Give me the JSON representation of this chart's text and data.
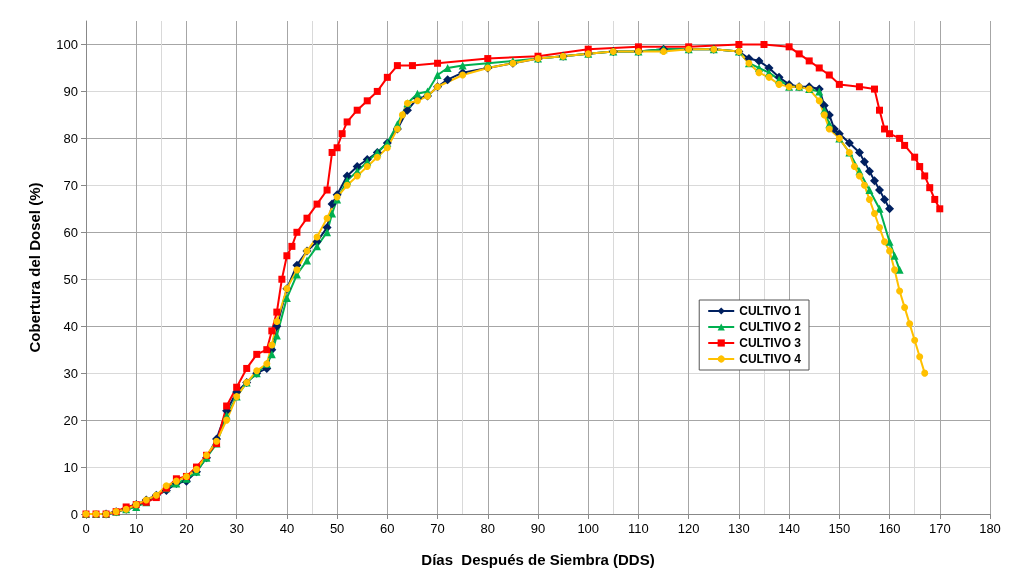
{
  "chart_data": {
    "type": "line",
    "xlabel": "Días  Después de Siembra (DDS)",
    "ylabel": "Cobertura del Dosel (%)",
    "xlim": [
      0,
      180
    ],
    "xticks": [
      0,
      10,
      20,
      30,
      40,
      50,
      60,
      70,
      80,
      90,
      100,
      110,
      120,
      130,
      140,
      150,
      160,
      170,
      180
    ],
    "ylim": [
      0,
      105
    ],
    "yticks": [
      0,
      10,
      20,
      30,
      40,
      50,
      60,
      70,
      80,
      90,
      100
    ],
    "grid": true,
    "legend": "right",
    "line_style": "solid",
    "series": [
      {
        "name": "CULTIVO 1",
        "color": "#002060",
        "marker": "diamond",
        "x": [
          4,
          6,
          8,
          10,
          12,
          14,
          16,
          18,
          20,
          22,
          24,
          26,
          28,
          30,
          32,
          34,
          36,
          37,
          38,
          40,
          42,
          44,
          46,
          48,
          49,
          50,
          52,
          54,
          56,
          58,
          60,
          62,
          64,
          66,
          68,
          70,
          72,
          75,
          80,
          85,
          90,
          95,
          100,
          105,
          110,
          115,
          120,
          125,
          130,
          132,
          134,
          136,
          138,
          140,
          142,
          144,
          146,
          147,
          148,
          149,
          150,
          152,
          154,
          155,
          156,
          157,
          158,
          159,
          160
        ],
        "values": [
          0,
          0.5,
          1,
          2,
          3,
          4,
          5,
          6.5,
          7,
          9,
          12,
          16,
          22,
          26,
          28,
          30,
          31,
          35,
          40,
          48,
          53,
          56,
          58,
          61,
          66,
          68,
          72,
          74,
          75.5,
          77,
          79,
          82,
          86,
          88.5,
          89,
          91,
          92.5,
          94,
          95,
          96,
          97,
          97.5,
          98,
          98.5,
          98.5,
          99,
          99,
          99,
          98.5,
          97,
          96.5,
          95,
          93,
          91.5,
          91,
          91,
          90.5,
          87,
          85,
          82,
          81,
          79,
          77,
          75,
          73,
          71,
          69,
          67,
          65
        ]
      },
      {
        "name": "CULTIVO 2",
        "color": "#00b050",
        "marker": "triangle",
        "x": [
          0,
          2,
          4,
          6,
          8,
          10,
          12,
          14,
          16,
          18,
          20,
          22,
          24,
          26,
          28,
          30,
          32,
          34,
          36,
          37,
          38,
          40,
          42,
          44,
          46,
          48,
          49,
          50,
          52,
          54,
          56,
          58,
          60,
          62,
          64,
          66,
          68,
          70,
          72,
          75,
          80,
          85,
          90,
          95,
          100,
          105,
          110,
          115,
          120,
          125,
          130,
          132,
          134,
          136,
          138,
          140,
          142,
          144,
          146,
          147,
          148,
          150,
          152,
          154,
          156,
          158,
          160,
          161,
          162
        ],
        "values": [
          0,
          0,
          0,
          0.5,
          1,
          1.5,
          2.5,
          4,
          5.5,
          6.5,
          7.5,
          9,
          12,
          15,
          21,
          25,
          28,
          30,
          32,
          34,
          38,
          46,
          51,
          54,
          57,
          60,
          64,
          67,
          71,
          73,
          75,
          77,
          79,
          83,
          87.5,
          89.5,
          90,
          93.5,
          95,
          95.5,
          96,
          96.5,
          97,
          97.5,
          98,
          98.5,
          98.5,
          99,
          99,
          99,
          98.5,
          96,
          95,
          94,
          92.5,
          91,
          91,
          90.5,
          90,
          86,
          83,
          80,
          77,
          73,
          69,
          65,
          58,
          55,
          52
        ]
      },
      {
        "name": "CULTIVO 3",
        "color": "#ff0000",
        "marker": "square",
        "x": [
          0,
          2,
          4,
          6,
          8,
          10,
          12,
          14,
          16,
          18,
          20,
          22,
          24,
          26,
          28,
          30,
          32,
          34,
          36,
          37,
          38,
          39,
          40,
          41,
          42,
          44,
          46,
          48,
          49,
          50,
          51,
          52,
          54,
          56,
          58,
          60,
          62,
          65,
          70,
          80,
          90,
          100,
          110,
          120,
          130,
          135,
          140,
          142,
          144,
          146,
          148,
          150,
          154,
          157,
          158,
          159,
          160,
          162,
          163,
          165,
          166,
          167,
          168,
          169,
          170
        ],
        "values": [
          0,
          0,
          0,
          0.5,
          1.5,
          2,
          2.5,
          3.5,
          5.5,
          7.5,
          8,
          10,
          12.5,
          15,
          23,
          27,
          31,
          34,
          35,
          39,
          43,
          50,
          55,
          57,
          60,
          63,
          66,
          69,
          77,
          78,
          81,
          83.5,
          86,
          88,
          90,
          93,
          95.5,
          95.5,
          96,
          97,
          97.5,
          99,
          99.5,
          99.5,
          100,
          100,
          99.5,
          98,
          96.5,
          95,
          93.5,
          91.5,
          91,
          90.5,
          86,
          82,
          81,
          80,
          78.5,
          76,
          74,
          72,
          69.5,
          67,
          65
        ]
      },
      {
        "name": "CULTIVO 4",
        "color": "#ffc000",
        "marker": "circle",
        "x": [
          0,
          2,
          4,
          6,
          8,
          10,
          12,
          14,
          16,
          18,
          20,
          22,
          24,
          26,
          28,
          30,
          32,
          34,
          36,
          37,
          38,
          40,
          42,
          44,
          46,
          48,
          50,
          52,
          54,
          56,
          58,
          60,
          62,
          63,
          64,
          66,
          68,
          70,
          75,
          80,
          85,
          90,
          95,
          100,
          105,
          110,
          115,
          120,
          125,
          130,
          132,
          134,
          136,
          138,
          140,
          142,
          144,
          146,
          147,
          148,
          150,
          152,
          153,
          154,
          155,
          156,
          157,
          158,
          159,
          160,
          161,
          162,
          163,
          164,
          165,
          166,
          167
        ],
        "values": [
          0,
          0,
          0,
          0.5,
          1,
          2,
          3,
          4,
          6,
          7,
          8,
          9.5,
          12.5,
          15.5,
          20,
          25,
          28,
          30.5,
          32,
          36,
          41,
          48,
          52,
          56,
          59,
          63,
          67.5,
          70,
          72,
          74,
          76,
          78,
          82,
          85,
          87.5,
          88,
          89,
          91,
          93.5,
          95,
          96,
          97,
          97.5,
          98,
          98.5,
          98.5,
          98.5,
          99,
          99,
          98.5,
          96,
          94,
          93,
          91.5,
          91,
          91,
          90.5,
          88,
          85,
          82,
          80,
          77,
          74,
          72,
          70,
          67,
          64,
          61,
          58,
          56,
          52,
          47.5,
          44,
          40.5,
          37,
          33.5,
          30
        ]
      }
    ]
  }
}
